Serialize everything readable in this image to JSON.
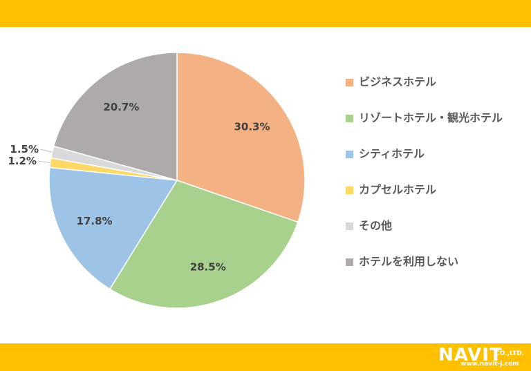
{
  "colors": {
    "band": "#FFC000",
    "label_text": "#404040",
    "slice_border": "#ffffff"
  },
  "chart_data": {
    "type": "pie",
    "start_angle_deg": 0,
    "direction": "clockwise",
    "slices": [
      {
        "name": "ビジネスホテル",
        "value": 30.3,
        "label": "30.3%",
        "color": "#F4B183"
      },
      {
        "name": "リゾートホテル・観光ホテル",
        "value": 28.5,
        "label": "28.5%",
        "color": "#A9D18E"
      },
      {
        "name": "シティホテル",
        "value": 17.8,
        "label": "17.8%",
        "color": "#9DC3E6"
      },
      {
        "name": "カプセルホテル",
        "value": 1.2,
        "label": "1.2%",
        "color": "#FFD966"
      },
      {
        "name": "その他",
        "value": 1.5,
        "label": "1.5%",
        "color": "#D9D9D9"
      },
      {
        "name": "ホテルを利用しない",
        "value": 20.7,
        "label": "20.7%",
        "color": "#AEAAAA"
      }
    ],
    "legend_position": "right"
  },
  "legend": {
    "items": [
      {
        "label": "ビジネスホテル",
        "color": "#F4B183"
      },
      {
        "label": "リゾートホテル・観光ホテル",
        "color": "#A9D18E"
      },
      {
        "label": "シティホテル",
        "color": "#9DC3E6"
      },
      {
        "label": "カプセルホテル",
        "color": "#FFD966"
      },
      {
        "label": "その他",
        "color": "#D9D9D9"
      },
      {
        "label": "ホテルを利用しない",
        "color": "#AEAAAA"
      }
    ]
  },
  "logo": {
    "name": "NAVIT",
    "suffix": "CO.,LTD.",
    "url": "www.navit-j.com"
  }
}
